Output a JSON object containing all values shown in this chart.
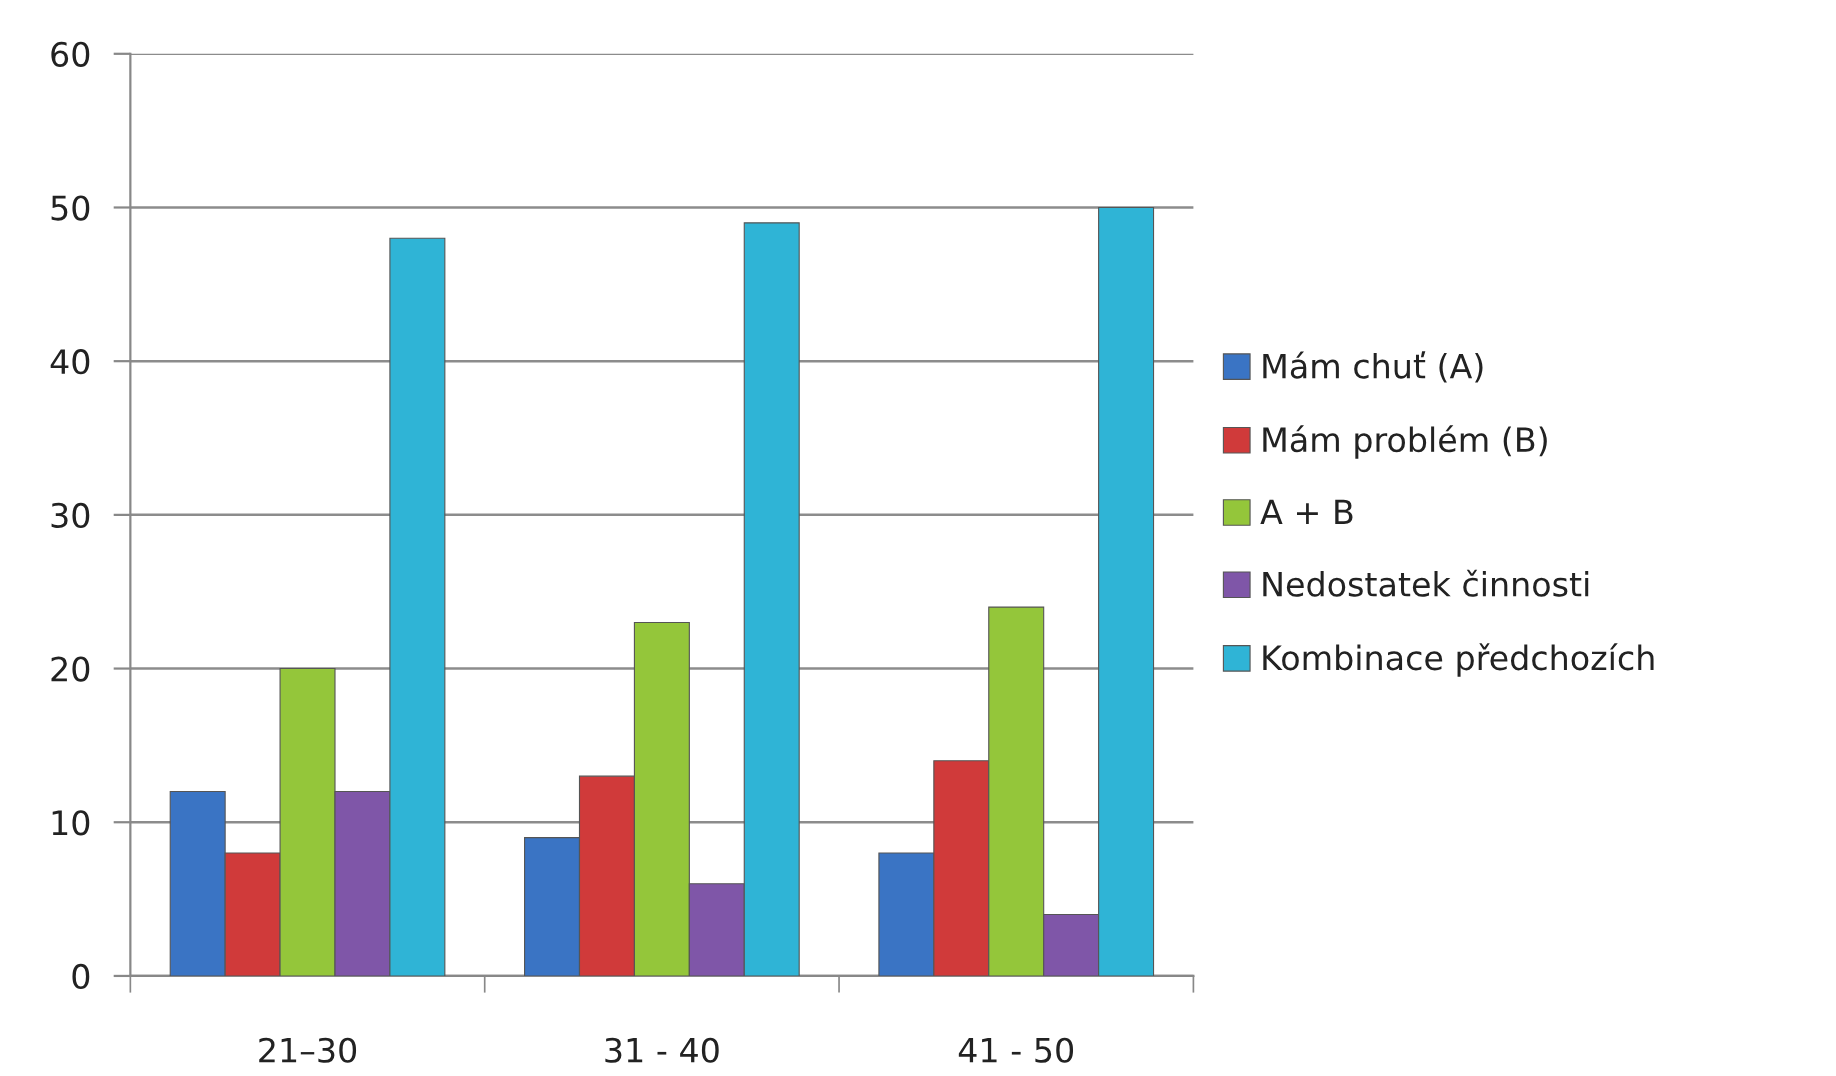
{
  "chart_data": {
    "type": "bar",
    "categories": [
      "21–30",
      "31 - 40",
      "41 - 50"
    ],
    "series": [
      {
        "name": "Mám chuť (A)",
        "color": "#3a74c4",
        "values": [
          12,
          9,
          8
        ]
      },
      {
        "name": "Mám problém (B)",
        "color": "#d03a3a",
        "values": [
          8,
          13,
          14
        ]
      },
      {
        "name": "A + B",
        "color": "#94c63a",
        "values": [
          20,
          23,
          24
        ]
      },
      {
        "name": "Nedostatek činnosti",
        "color": "#7f56a8",
        "values": [
          12,
          6,
          4
        ]
      },
      {
        "name": "Kombinace předchozích",
        "color": "#2fb4d6",
        "values": [
          48,
          49,
          50
        ]
      }
    ],
    "ylim": [
      0,
      60
    ],
    "yticks": [
      0,
      10,
      20,
      30,
      40,
      50,
      60
    ],
    "grid": "y",
    "legend": "right"
  }
}
